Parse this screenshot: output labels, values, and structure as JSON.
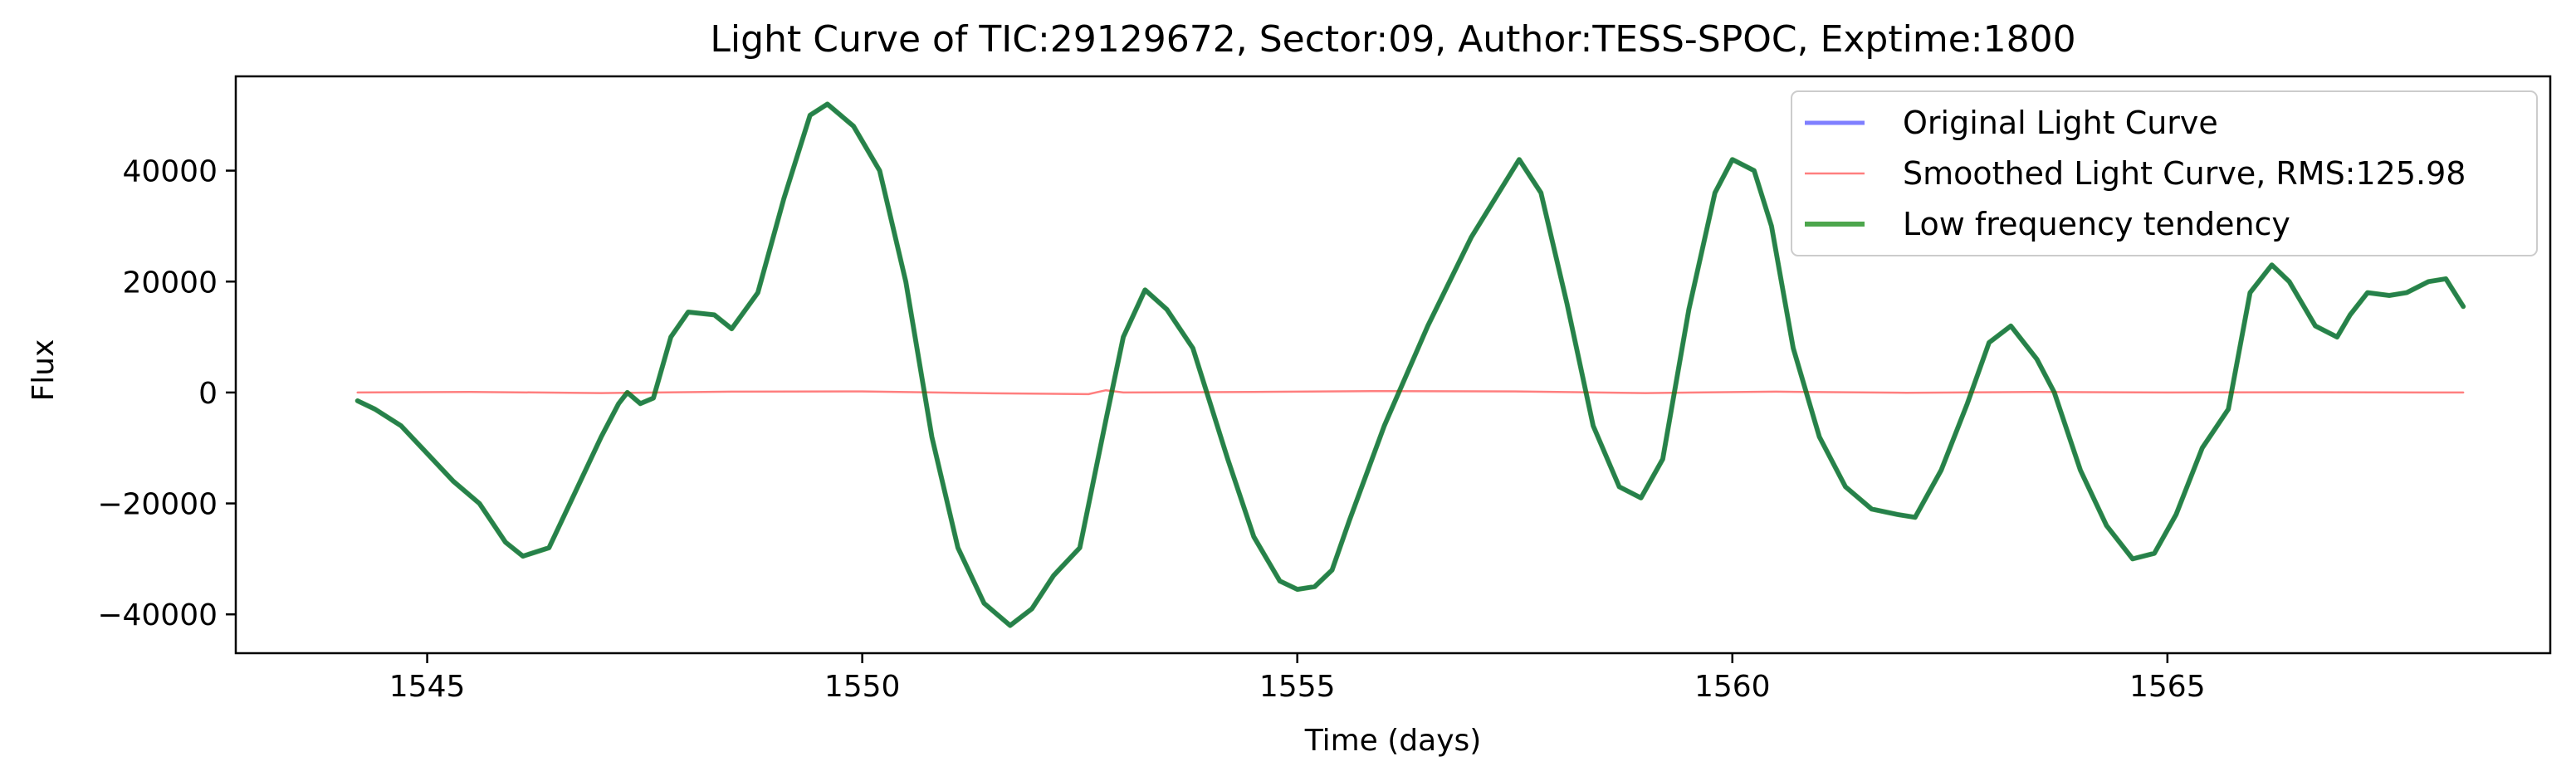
{
  "chart_data": {
    "type": "line",
    "title": "Light Curve of TIC:29129672, Sector:09, Author:TESS-SPOC, Exptime:1800",
    "xlabel": "Time (days)",
    "ylabel": "Flux",
    "xlim": [
      1542.8,
      1569.4
    ],
    "ylim": [
      -47000,
      57000
    ],
    "xticks": [
      1545,
      1550,
      1555,
      1560,
      1565
    ],
    "yticks": [
      -40000,
      -20000,
      0,
      20000,
      40000
    ],
    "xtick_labels": [
      "1545",
      "1550",
      "1555",
      "1560",
      "1565"
    ],
    "ytick_labels": [
      "−40000",
      "−20000",
      "0",
      "20000",
      "40000"
    ],
    "grid": false,
    "legend_position": "upper right",
    "series": [
      {
        "name": "Original Light Curve",
        "color": "#0000ff",
        "style": "solid",
        "x": [
          1544.2,
          1544.4,
          1544.7,
          1545.0,
          1545.3,
          1545.6,
          1545.9,
          1546.1,
          1546.4,
          1546.7,
          1547.0,
          1547.2,
          1547.3,
          1547.45,
          1547.6,
          1547.8,
          1548.0,
          1548.3,
          1548.5,
          1548.8,
          1549.1,
          1549.4,
          1549.6,
          1549.9,
          1550.2,
          1550.5,
          1550.8,
          1551.1,
          1551.4,
          1551.7,
          1551.95,
          1552.2,
          1552.5,
          1552.8,
          1553.0,
          1553.25,
          1553.5,
          1553.8,
          1554.0,
          1554.2,
          1554.5,
          1554.8,
          1555.0,
          1555.2,
          1555.4,
          1555.6,
          1556.0,
          1556.5,
          1557.0,
          1557.55,
          1557.8,
          1558.1,
          1558.4,
          1558.7,
          1558.95,
          1559.2,
          1559.5,
          1559.8,
          1560.0,
          1560.25,
          1560.45,
          1560.7,
          1561.0,
          1561.3,
          1561.6,
          1561.9,
          1562.1,
          1562.4,
          1562.7,
          1562.95,
          1563.2,
          1563.5,
          1563.7,
          1564.0,
          1564.3,
          1564.6,
          1564.85,
          1565.1,
          1565.4,
          1565.7,
          1565.95,
          1566.2,
          1566.4,
          1566.7,
          1566.95,
          1567.1,
          1567.3,
          1567.55,
          1567.75,
          1568.0,
          1568.2,
          1568.4
        ],
        "y": [
          -1500,
          -3000,
          -6000,
          -11000,
          -16000,
          -20000,
          -27000,
          -29500,
          -28000,
          -18000,
          -8000,
          -2000,
          0,
          -2000,
          -1000,
          10000,
          14500,
          14000,
          11500,
          18000,
          35000,
          50000,
          52000,
          48000,
          40000,
          20000,
          -8000,
          -28000,
          -38000,
          -42000,
          -39000,
          -33000,
          -28000,
          -5000,
          10000,
          18500,
          15000,
          8000,
          -2000,
          -12000,
          -26000,
          -34000,
          -35500,
          -35000,
          -32000,
          -23000,
          -6000,
          12000,
          28000,
          42000,
          36000,
          16000,
          -6000,
          -17000,
          -19000,
          -12000,
          15000,
          36000,
          42000,
          40000,
          30000,
          8000,
          -8000,
          -17000,
          -21000,
          -22000,
          -22500,
          -14000,
          -2000,
          9000,
          12000,
          6000,
          0,
          -14000,
          -24000,
          -30000,
          -29000,
          -22000,
          -10000,
          -3000,
          18000,
          23000,
          20000,
          12000,
          10000,
          14000,
          18000,
          17500,
          18000,
          20000,
          20500,
          15500
        ]
      },
      {
        "name": "Smoothed Light Curve, RMS:125.98",
        "color": "#ff0000",
        "style": "solid",
        "x": [
          1544.2,
          1545.5,
          1547.0,
          1548.5,
          1550.0,
          1551.5,
          1552.6,
          1552.8,
          1553.0,
          1554.5,
          1556.0,
          1557.5,
          1559.0,
          1560.5,
          1562.0,
          1563.5,
          1565.0,
          1566.5,
          1568.4
        ],
        "y": [
          0,
          100,
          -100,
          150,
          200,
          -150,
          -300,
          400,
          0,
          100,
          250,
          200,
          -100,
          150,
          -50,
          100,
          0,
          50,
          0
        ]
      },
      {
        "name": "Low frequency tendency",
        "color": "#008000",
        "style": "solid",
        "x": [
          1544.2,
          1544.4,
          1544.7,
          1545.0,
          1545.3,
          1545.6,
          1545.9,
          1546.1,
          1546.4,
          1546.7,
          1547.0,
          1547.2,
          1547.3,
          1547.45,
          1547.6,
          1547.8,
          1548.0,
          1548.3,
          1548.5,
          1548.8,
          1549.1,
          1549.4,
          1549.6,
          1549.9,
          1550.2,
          1550.5,
          1550.8,
          1551.1,
          1551.4,
          1551.7,
          1551.95,
          1552.2,
          1552.5,
          1552.8,
          1553.0,
          1553.25,
          1553.5,
          1553.8,
          1554.0,
          1554.2,
          1554.5,
          1554.8,
          1555.0,
          1555.2,
          1555.4,
          1555.6,
          1556.0,
          1556.5,
          1557.0,
          1557.55,
          1557.8,
          1558.1,
          1558.4,
          1558.7,
          1558.95,
          1559.2,
          1559.5,
          1559.8,
          1560.0,
          1560.25,
          1560.45,
          1560.7,
          1561.0,
          1561.3,
          1561.6,
          1561.9,
          1562.1,
          1562.4,
          1562.7,
          1562.95,
          1563.2,
          1563.5,
          1563.7,
          1564.0,
          1564.3,
          1564.6,
          1564.85,
          1565.1,
          1565.4,
          1565.7,
          1565.95,
          1566.2,
          1566.4,
          1566.7,
          1566.95,
          1567.1,
          1567.3,
          1567.55,
          1567.75,
          1568.0,
          1568.2,
          1568.4
        ],
        "y": [
          -1500,
          -3000,
          -6000,
          -11000,
          -16000,
          -20000,
          -27000,
          -29500,
          -28000,
          -18000,
          -8000,
          -2000,
          0,
          -2000,
          -1000,
          10000,
          14500,
          14000,
          11500,
          18000,
          35000,
          50000,
          52000,
          48000,
          40000,
          20000,
          -8000,
          -28000,
          -38000,
          -42000,
          -39000,
          -33000,
          -28000,
          -5000,
          10000,
          18500,
          15000,
          8000,
          -2000,
          -12000,
          -26000,
          -34000,
          -35500,
          -35000,
          -32000,
          -23000,
          -6000,
          12000,
          28000,
          42000,
          36000,
          16000,
          -6000,
          -17000,
          -19000,
          -12000,
          15000,
          36000,
          42000,
          40000,
          30000,
          8000,
          -8000,
          -17000,
          -21000,
          -22000,
          -22500,
          -14000,
          -2000,
          9000,
          12000,
          6000,
          0,
          -14000,
          -24000,
          -30000,
          -29000,
          -22000,
          -10000,
          -3000,
          18000,
          23000,
          20000,
          12000,
          10000,
          14000,
          18000,
          17500,
          18000,
          20000,
          20500,
          15500
        ]
      }
    ]
  }
}
